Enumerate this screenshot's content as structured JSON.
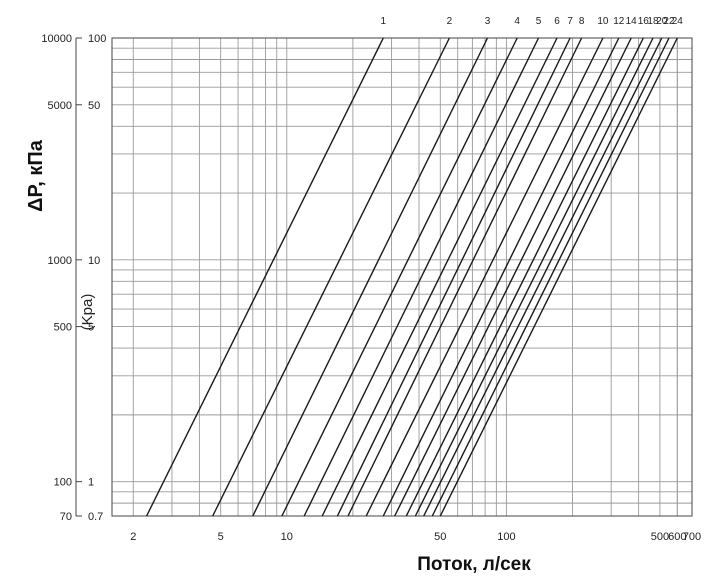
{
  "chart_data": {
    "type": "line",
    "scale": "log-log",
    "grid": true,
    "xlabel": "Поток, л/сек",
    "ylabel": "ΔP, кПа",
    "ylabel_secondary": "(Kpa)",
    "xlim": [
      1.6,
      700
    ],
    "ylim_primary": [
      70,
      10000
    ],
    "ylim_secondary": [
      0.7,
      100
    ],
    "x_ticks": [
      "2",
      "5",
      "10",
      "50",
      "100",
      "500",
      "600",
      "700"
    ],
    "x_tick_values": [
      2,
      5,
      10,
      50,
      100,
      500,
      600,
      700
    ],
    "y_ticks_primary": [
      "10000",
      "5000",
      "1000",
      "500",
      "100",
      "70"
    ],
    "y_tick_values_primary": [
      10000,
      5000,
      1000,
      500,
      100,
      70
    ],
    "y_ticks_secondary": [
      "100",
      "50",
      "10",
      "5",
      "1",
      "0.7"
    ],
    "y_tick_values_secondary": [
      100,
      50,
      10,
      5,
      1,
      0.7
    ],
    "series": [
      {
        "name": "1",
        "x": [
          2.3,
          27.5
        ],
        "y": [
          0.7,
          100
        ]
      },
      {
        "name": "2",
        "x": [
          4.6,
          55
        ],
        "y": [
          0.7,
          100
        ]
      },
      {
        "name": "3",
        "x": [
          7,
          82
        ],
        "y": [
          0.7,
          100
        ]
      },
      {
        "name": "4",
        "x": [
          9.5,
          112
        ],
        "y": [
          0.7,
          100
        ]
      },
      {
        "name": "5",
        "x": [
          12,
          140
        ],
        "y": [
          0.7,
          100
        ]
      },
      {
        "name": "6",
        "x": [
          14.5,
          170
        ],
        "y": [
          0.7,
          100
        ]
      },
      {
        "name": "7",
        "x": [
          17,
          195
        ],
        "y": [
          0.7,
          100
        ]
      },
      {
        "name": "8",
        "x": [
          19,
          220
        ],
        "y": [
          0.7,
          100
        ]
      },
      {
        "name": "10",
        "x": [
          23,
          275
        ],
        "y": [
          0.7,
          100
        ]
      },
      {
        "name": "12",
        "x": [
          27.5,
          325
        ],
        "y": [
          0.7,
          100
        ]
      },
      {
        "name": "14",
        "x": [
          31,
          370
        ],
        "y": [
          0.7,
          100
        ]
      },
      {
        "name": "16",
        "x": [
          35,
          420
        ],
        "y": [
          0.7,
          100
        ]
      },
      {
        "name": "18",
        "x": [
          38.5,
          465
        ],
        "y": [
          0.7,
          100
        ]
      },
      {
        "name": "20",
        "x": [
          42,
          510
        ],
        "y": [
          0.7,
          100
        ]
      },
      {
        "name": "22",
        "x": [
          46,
          550
        ],
        "y": [
          0.7,
          100
        ]
      },
      {
        "name": "24",
        "x": [
          50,
          600
        ],
        "y": [
          0.7,
          100
        ]
      }
    ]
  }
}
